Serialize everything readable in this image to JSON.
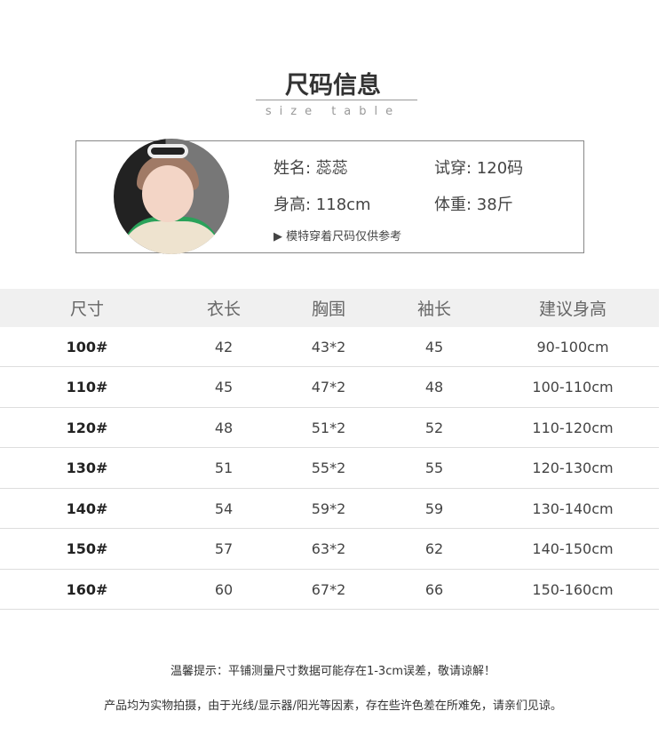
{
  "header": {
    "title": "尺码信息",
    "subtitle": "size table"
  },
  "model": {
    "name": "姓名: 蕊蕊",
    "try_size": "试穿: 120码",
    "height": "身高: 118cm",
    "weight": "体重: 38斤",
    "note": "▶ 模特穿着尺码仅供参考"
  },
  "table": {
    "headers": [
      "尺寸",
      "衣长",
      "胸围",
      "袖长",
      "建议身高"
    ],
    "rows": [
      [
        "100#",
        "42",
        "43*2",
        "45",
        "90-100cm"
      ],
      [
        "110#",
        "45",
        "47*2",
        "48",
        "100-110cm"
      ],
      [
        "120#",
        "48",
        "51*2",
        "52",
        "110-120cm"
      ],
      [
        "130#",
        "51",
        "55*2",
        "55",
        "120-130cm"
      ],
      [
        "140#",
        "54",
        "59*2",
        "59",
        "130-140cm"
      ],
      [
        "150#",
        "57",
        "63*2",
        "62",
        "140-150cm"
      ],
      [
        "160#",
        "60",
        "67*2",
        "66",
        "150-160cm"
      ]
    ]
  },
  "footer": {
    "tip": "温馨提示：平铺测量尺寸数据可能存在1-3cm误差，敬请谅解！",
    "disclaimer": "产品均为实物拍摄，由于光线/显示器/阳光等因素，存在些许色差在所难免，请亲们见谅。"
  }
}
